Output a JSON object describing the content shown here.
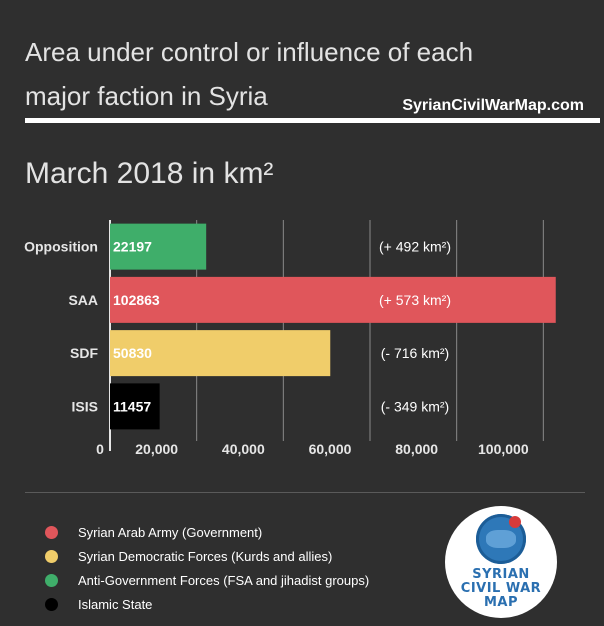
{
  "header": {
    "title": "Area under control or influence of each major faction in Syria",
    "site": "SyrianCivilWarMap.com",
    "subtitle": "March 2018 in km²"
  },
  "chart_data": {
    "type": "bar",
    "orientation": "horizontal",
    "categories": [
      "Opposition",
      "SAA",
      "SDF",
      "ISIS"
    ],
    "values": [
      22197,
      102863,
      50830,
      11457
    ],
    "value_labels": [
      "22197",
      "102863",
      "50830",
      "11457"
    ],
    "changes": [
      "(+ 492 km²)",
      "(+ 573 km²)",
      "(- 716 km²)",
      "(- 349 km²)"
    ],
    "colors": [
      "#3fae6a",
      "#e0565b",
      "#f0cd6a",
      "#000000"
    ],
    "xlim": [
      0,
      105000
    ],
    "xticks": [
      0,
      20000,
      40000,
      60000,
      80000,
      100000
    ],
    "xtick_labels": [
      "0",
      "20,000",
      "40,000",
      "60,000",
      "80,000",
      "100,000"
    ],
    "grid": true
  },
  "legend": {
    "items": [
      {
        "label": "Syrian Arab Army (Government)",
        "color": "#e0565b"
      },
      {
        "label": "Syrian Democratic Forces (Kurds and allies)",
        "color": "#f0cd6a"
      },
      {
        "label": "Anti-Government Forces (FSA and jihadist groups)",
        "color": "#3fae6a"
      },
      {
        "label": "Islamic State",
        "color": "#000000"
      }
    ]
  },
  "logo": {
    "lines": [
      "SYRIAN",
      "CIVIL WAR",
      "MAP"
    ]
  }
}
